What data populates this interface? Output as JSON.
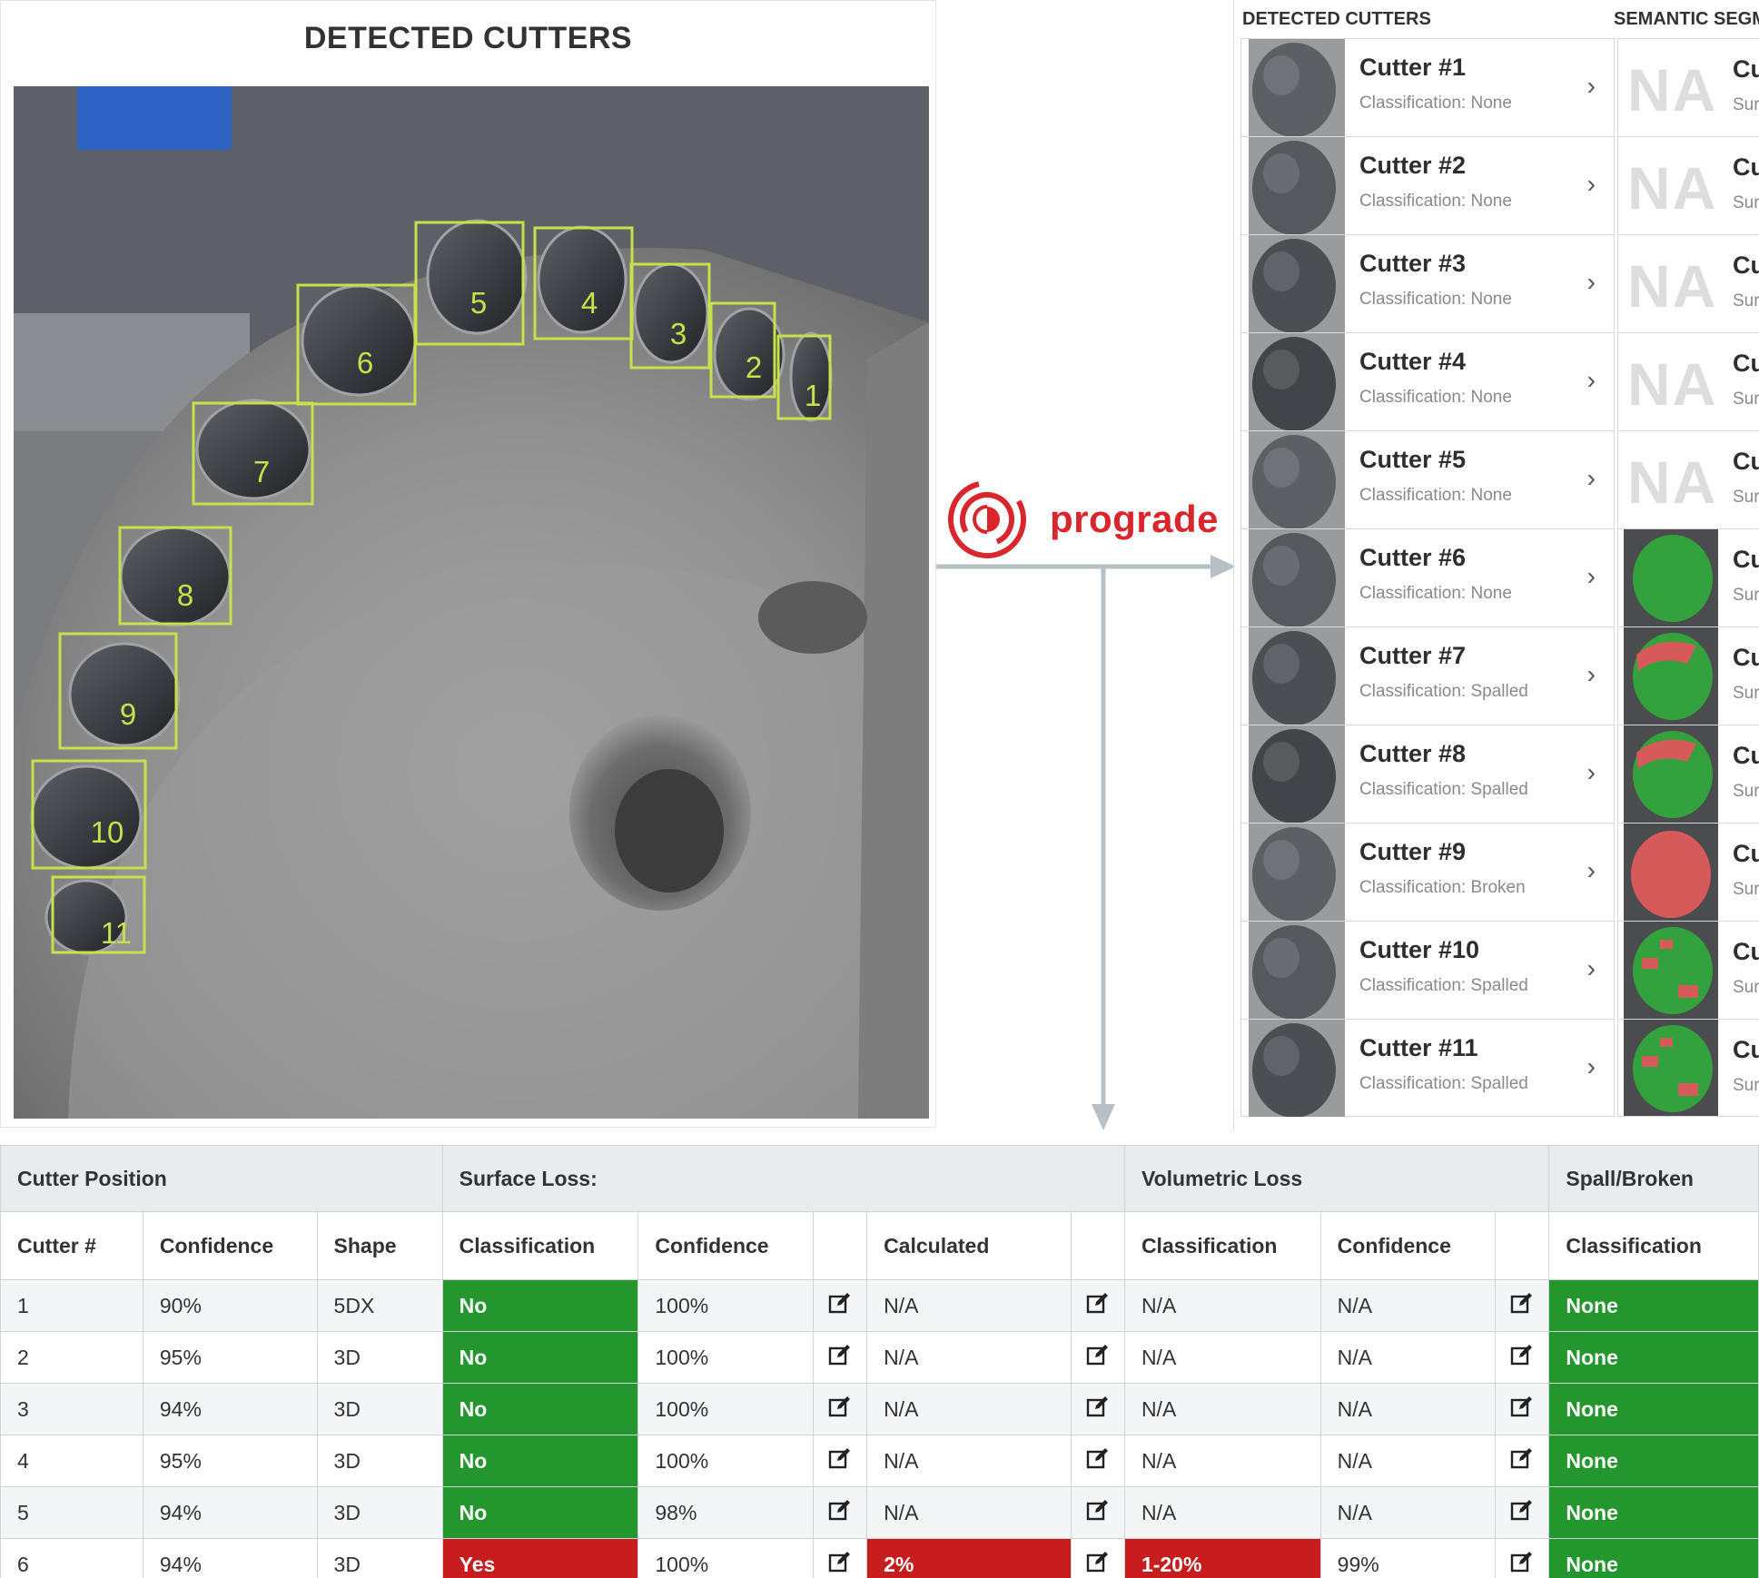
{
  "left_panel": {
    "title": "DETECTED CUTTERS",
    "boxes": [
      {
        "label": "1"
      },
      {
        "label": "2"
      },
      {
        "label": "3"
      },
      {
        "label": "4"
      },
      {
        "label": "5"
      },
      {
        "label": "6"
      },
      {
        "label": "7"
      },
      {
        "label": "8"
      },
      {
        "label": "9"
      },
      {
        "label": "10"
      },
      {
        "label": "11"
      }
    ]
  },
  "brand": {
    "name": "prograde",
    "color": "#d9262c",
    "icon": "prograde-logo-icon"
  },
  "right_panel": {
    "detected_header": "DETECTED CUTTERS",
    "semantic_header": "SEMANTIC SEGM",
    "cutters": [
      {
        "name": "Cutter #1",
        "classification": "Classification: None"
      },
      {
        "name": "Cutter #2",
        "classification": "Classification: None"
      },
      {
        "name": "Cutter #3",
        "classification": "Classification: None"
      },
      {
        "name": "Cutter #4",
        "classification": "Classification: None"
      },
      {
        "name": "Cutter #5",
        "classification": "Classification: None"
      },
      {
        "name": "Cutter #6",
        "classification": "Classification: None"
      },
      {
        "name": "Cutter #7",
        "classification": "Classification: Spalled"
      },
      {
        "name": "Cutter #8",
        "classification": "Classification: Spalled"
      },
      {
        "name": "Cutter #9",
        "classification": "Classification: Broken"
      },
      {
        "name": "Cutter #10",
        "classification": "Classification: Spalled"
      },
      {
        "name": "Cutter #11",
        "classification": "Classification: Spalled"
      }
    ],
    "segments": [
      {
        "na": "NA",
        "cu": "Cu",
        "sur": "Sur"
      },
      {
        "na": "NA",
        "cu": "Cu",
        "sur": "Sur"
      },
      {
        "na": "NA",
        "cu": "Cu",
        "sur": "Sur"
      },
      {
        "na": "NA",
        "cu": "Cu",
        "sur": "Sur"
      },
      {
        "na": "NA",
        "cu": "Cu",
        "sur": "Sur"
      },
      {
        "na": "",
        "cu": "Cu",
        "sur": "Sur",
        "mask": "green"
      },
      {
        "na": "",
        "cu": "Cu",
        "sur": "Sur",
        "mask": "green-red-top"
      },
      {
        "na": "",
        "cu": "Cu",
        "sur": "Sur",
        "mask": "green-red-top"
      },
      {
        "na": "",
        "cu": "Cu",
        "sur": "Sur",
        "mask": "red"
      },
      {
        "na": "",
        "cu": "Cu",
        "sur": "Sur",
        "mask": "green-red-spots"
      },
      {
        "na": "",
        "cu": "Cu",
        "sur": "Sur",
        "mask": "green-red-spots"
      }
    ]
  },
  "table": {
    "groups": [
      "Cutter Position",
      "Surface Loss:",
      "Volumetric Loss",
      "Spall/Broken"
    ],
    "columns": [
      "Cutter #",
      "Confidence",
      "Shape",
      "Classification",
      "Confidence",
      "",
      "Calculated",
      "",
      "Classification",
      "Confidence",
      "",
      "Classification"
    ],
    "rows": [
      {
        "num": "1",
        "conf": "90%",
        "shape": "5DX",
        "surf_class": "No",
        "surf_conf": "100%",
        "calc": "N/A",
        "vol_class": "N/A",
        "vol_conf": "N/A",
        "spall": "None"
      },
      {
        "num": "2",
        "conf": "95%",
        "shape": "3D",
        "surf_class": "No",
        "surf_conf": "100%",
        "calc": "N/A",
        "vol_class": "N/A",
        "vol_conf": "N/A",
        "spall": "None"
      },
      {
        "num": "3",
        "conf": "94%",
        "shape": "3D",
        "surf_class": "No",
        "surf_conf": "100%",
        "calc": "N/A",
        "vol_class": "N/A",
        "vol_conf": "N/A",
        "spall": "None"
      },
      {
        "num": "4",
        "conf": "95%",
        "shape": "3D",
        "surf_class": "No",
        "surf_conf": "100%",
        "calc": "N/A",
        "vol_class": "N/A",
        "vol_conf": "N/A",
        "spall": "None"
      },
      {
        "num": "5",
        "conf": "94%",
        "shape": "3D",
        "surf_class": "No",
        "surf_conf": "98%",
        "calc": "N/A",
        "vol_class": "N/A",
        "vol_conf": "N/A",
        "spall": "None"
      },
      {
        "num": "6",
        "conf": "94%",
        "shape": "3D",
        "surf_class": "Yes",
        "surf_conf": "100%",
        "calc": "2%",
        "vol_class": "1-20%",
        "vol_conf": "99%",
        "spall": "None",
        "flag": true
      }
    ]
  },
  "colors": {
    "green": "#23962d",
    "red": "#c81d1f",
    "box": "#c8e04a",
    "arrow": "#b7c0c7"
  }
}
